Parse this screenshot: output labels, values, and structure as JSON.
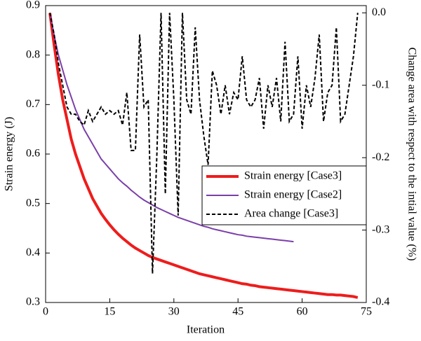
{
  "chart_data": {
    "type": "line",
    "xlabel": "Iteration",
    "ylabel": "Strain energy (J)",
    "y2label": "Change area with respect to the intial value (%)",
    "xlim": [
      0,
      75
    ],
    "xticks": [
      0,
      15,
      30,
      45,
      60,
      75
    ],
    "ylim": [
      0.3,
      0.9
    ],
    "yticks": [
      0.3,
      0.4,
      0.5,
      0.6,
      0.7,
      0.8,
      0.9
    ],
    "y2lim": [
      -0.4,
      0.01
    ],
    "y2ticks": [
      -0.4,
      -0.3,
      -0.2,
      -0.1,
      {
        "value": 0,
        "label": "0.0"
      }
    ],
    "legend": "center-right",
    "x": [
      1,
      2,
      3,
      4,
      5,
      6,
      7,
      8,
      9,
      10,
      11,
      12,
      13,
      14,
      15,
      16,
      17,
      18,
      19,
      20,
      21,
      22,
      23,
      24,
      25,
      26,
      27,
      28,
      29,
      30,
      31,
      32,
      33,
      34,
      35,
      36,
      37,
      38,
      39,
      40,
      41,
      42,
      43,
      44,
      45,
      46,
      47,
      48,
      49,
      50,
      51,
      52,
      53,
      54,
      55,
      56,
      57,
      58,
      59,
      60,
      61,
      62,
      63,
      64,
      65,
      66,
      67,
      68,
      69,
      70,
      71,
      72,
      73
    ],
    "series": [
      {
        "name": "Strain energy [Case3]",
        "color": "#ee1c1c",
        "dash": "solid",
        "width": 4,
        "values": [
          0.885,
          0.82,
          0.76,
          0.71,
          0.67,
          0.63,
          0.6,
          0.575,
          0.55,
          0.53,
          0.51,
          0.495,
          0.48,
          0.468,
          0.457,
          0.447,
          0.438,
          0.43,
          0.423,
          0.416,
          0.41,
          0.405,
          0.4,
          0.395,
          0.391,
          0.388,
          0.385,
          0.382,
          0.379,
          0.376,
          0.373,
          0.37,
          0.367,
          0.364,
          0.361,
          0.358,
          0.356,
          0.354,
          0.352,
          0.35,
          0.348,
          0.346,
          0.344,
          0.342,
          0.34,
          0.338,
          0.337,
          0.335,
          0.334,
          0.332,
          0.331,
          0.33,
          0.329,
          0.328,
          0.327,
          0.326,
          0.325,
          0.324,
          0.323,
          0.322,
          0.321,
          0.32,
          0.319,
          0.318,
          0.317,
          0.316,
          0.316,
          0.315,
          0.315,
          0.314,
          0.313,
          0.312,
          0.31
        ]
      },
      {
        "name": "Strain energy [Case2]",
        "color": "#7b3fa8",
        "dash": "solid",
        "width": 2,
        "values": [
          0.885,
          0.84,
          0.8,
          0.77,
          0.74,
          0.715,
          0.69,
          0.67,
          0.65,
          0.635,
          0.62,
          0.605,
          0.59,
          0.58,
          0.57,
          0.56,
          0.55,
          0.542,
          0.535,
          0.527,
          0.52,
          0.513,
          0.507,
          0.502,
          0.497,
          0.492,
          0.488,
          0.484,
          0.48,
          0.476,
          0.472,
          0.469,
          0.466,
          0.463,
          0.46,
          0.457,
          0.454,
          0.452,
          0.449,
          0.447,
          0.445,
          0.443,
          0.441,
          0.439,
          0.437,
          0.436,
          0.434,
          0.433,
          0.432,
          0.431,
          0.43,
          0.429,
          0.428,
          0.427,
          0.426,
          0.425,
          0.424,
          0.423,
          null,
          null,
          null,
          null,
          null,
          null,
          null,
          null,
          null,
          null,
          null,
          null,
          null,
          null,
          null
        ]
      },
      {
        "name": "Area change [Case3]",
        "color": "#000000",
        "dash": "dashed",
        "width": 2,
        "axis": "y2",
        "values": [
          0,
          -0.03,
          -0.07,
          -0.1,
          -0.13,
          -0.14,
          -0.14,
          -0.15,
          -0.155,
          -0.135,
          -0.15,
          -0.14,
          -0.13,
          -0.14,
          -0.135,
          -0.14,
          -0.135,
          -0.155,
          -0.11,
          -0.19,
          -0.19,
          -0.03,
          -0.13,
          -0.12,
          -0.36,
          -0.2,
          0,
          -0.25,
          0,
          -0.12,
          -0.28,
          0,
          -0.12,
          -0.14,
          -0.02,
          -0.12,
          -0.17,
          -0.21,
          -0.08,
          -0.1,
          -0.14,
          -0.1,
          -0.14,
          -0.11,
          -0.12,
          -0.06,
          -0.12,
          -0.13,
          -0.12,
          -0.09,
          -0.16,
          -0.1,
          -0.13,
          -0.09,
          -0.15,
          -0.04,
          -0.15,
          -0.14,
          -0.06,
          -0.16,
          -0.1,
          -0.13,
          -0.09,
          -0.03,
          -0.15,
          -0.11,
          -0.1,
          -0.02,
          -0.15,
          -0.14,
          -0.1,
          -0.06,
          0
        ]
      }
    ]
  }
}
